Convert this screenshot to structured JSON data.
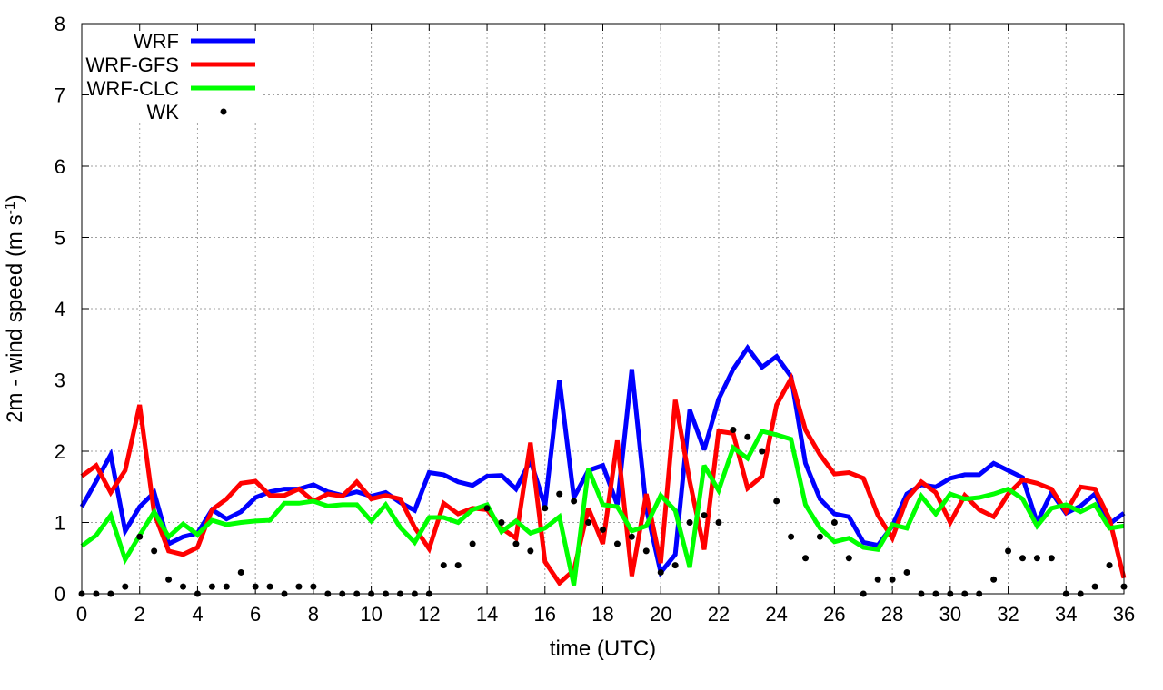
{
  "chart_data": {
    "type": "line",
    "xlabel": "time (UTC)",
    "ylabel": {
      "main": "2m - wind speed  (m s",
      "sup": "-1",
      "close": ")"
    },
    "xlim": [
      0,
      36
    ],
    "ylim": [
      0,
      8
    ],
    "xticks": [
      0,
      2,
      4,
      6,
      8,
      10,
      12,
      14,
      16,
      18,
      20,
      22,
      24,
      26,
      28,
      30,
      32,
      34,
      36
    ],
    "yticks": [
      0,
      1,
      2,
      3,
      4,
      5,
      6,
      7,
      8
    ],
    "grid": true,
    "legend_position": "top-left",
    "series": [
      {
        "name": "WRF",
        "color": "#0000ff",
        "style": "line",
        "x": [
          0,
          0.5,
          1,
          1.5,
          2,
          2.5,
          3,
          3.5,
          4,
          4.5,
          5,
          5.5,
          6,
          6.5,
          7,
          7.5,
          8,
          8.5,
          9,
          9.5,
          10,
          10.5,
          11,
          11.5,
          12,
          12.5,
          13,
          13.5,
          14,
          14.5,
          15,
          15.5,
          16,
          16.5,
          17,
          17.5,
          18,
          18.5,
          19,
          19.5,
          20,
          20.5,
          21,
          21.5,
          22,
          22.5,
          23,
          23.5,
          24,
          24.5,
          25,
          25.5,
          26,
          26.5,
          27,
          27.5,
          28,
          28.5,
          29,
          29.5,
          30,
          30.5,
          31,
          31.5,
          32,
          32.5,
          33,
          33.5,
          34,
          34.5,
          35,
          35.5,
          36
        ],
        "y": [
          1.22,
          1.58,
          1.95,
          0.88,
          1.22,
          1.42,
          0.7,
          0.8,
          0.85,
          1.18,
          1.05,
          1.15,
          1.35,
          1.43,
          1.47,
          1.47,
          1.53,
          1.43,
          1.38,
          1.43,
          1.37,
          1.42,
          1.28,
          1.17,
          1.7,
          1.67,
          1.57,
          1.52,
          1.65,
          1.66,
          1.47,
          1.87,
          1.23,
          3.0,
          1.35,
          1.73,
          1.8,
          1.25,
          3.15,
          1.2,
          0.3,
          0.55,
          2.58,
          2.02,
          2.73,
          3.15,
          3.45,
          3.18,
          3.33,
          3.05,
          1.83,
          1.33,
          1.12,
          1.08,
          0.72,
          0.68,
          0.95,
          1.4,
          1.53,
          1.5,
          1.62,
          1.67,
          1.67,
          1.83,
          1.73,
          1.63,
          1.0,
          1.42,
          1.13,
          1.23,
          1.4,
          0.98,
          1.13
        ]
      },
      {
        "name": "WRF-GFS",
        "color": "#ff0000",
        "style": "line",
        "x": [
          0,
          0.5,
          1,
          1.5,
          2,
          2.5,
          3,
          3.5,
          4,
          4.5,
          5,
          5.5,
          6,
          6.5,
          7,
          7.5,
          8,
          8.5,
          9,
          9.5,
          10,
          10.5,
          11,
          11.5,
          12,
          12.5,
          13,
          13.5,
          14,
          14.5,
          15,
          15.5,
          16,
          16.5,
          17,
          17.5,
          18,
          18.5,
          19,
          19.5,
          20,
          20.5,
          21,
          21.5,
          22,
          22.5,
          23,
          23.5,
          24,
          24.5,
          25,
          25.5,
          26,
          26.5,
          27,
          27.5,
          28,
          28.5,
          29,
          29.5,
          30,
          30.5,
          31,
          31.5,
          32,
          32.5,
          33,
          33.5,
          34,
          34.5,
          35,
          35.5,
          36
        ],
        "y": [
          1.65,
          1.8,
          1.42,
          1.73,
          2.65,
          1.13,
          0.6,
          0.55,
          0.65,
          1.18,
          1.33,
          1.55,
          1.58,
          1.38,
          1.38,
          1.47,
          1.3,
          1.4,
          1.37,
          1.57,
          1.33,
          1.38,
          1.33,
          0.93,
          0.63,
          1.27,
          1.12,
          1.2,
          1.18,
          0.92,
          0.78,
          2.12,
          0.45,
          0.15,
          0.33,
          1.2,
          0.7,
          2.15,
          0.25,
          1.4,
          0.43,
          2.72,
          1.58,
          0.62,
          2.28,
          2.25,
          1.48,
          1.65,
          2.65,
          3.02,
          2.3,
          1.95,
          1.68,
          1.7,
          1.62,
          1.1,
          0.78,
          1.33,
          1.57,
          1.42,
          1.0,
          1.38,
          1.18,
          1.08,
          1.4,
          1.6,
          1.55,
          1.47,
          1.15,
          1.5,
          1.47,
          1.05,
          0.22
        ]
      },
      {
        "name": "WRF-CLC",
        "color": "#00ff00",
        "style": "line",
        "x": [
          0,
          0.5,
          1,
          1.5,
          2,
          2.5,
          3,
          3.5,
          4,
          4.5,
          5,
          5.5,
          6,
          6.5,
          7,
          7.5,
          8,
          8.5,
          9,
          9.5,
          10,
          10.5,
          11,
          11.5,
          12,
          12.5,
          13,
          13.5,
          14,
          14.5,
          15,
          15.5,
          16,
          16.5,
          17,
          17.5,
          18,
          18.5,
          19,
          19.5,
          20,
          20.5,
          21,
          21.5,
          22,
          22.5,
          23,
          23.5,
          24,
          24.5,
          25,
          25.5,
          26,
          26.5,
          27,
          27.5,
          28,
          28.5,
          29,
          29.5,
          30,
          30.5,
          31,
          31.5,
          32,
          32.5,
          33,
          33.5,
          34,
          34.5,
          35,
          35.5,
          36
        ],
        "y": [
          0.67,
          0.82,
          1.1,
          0.48,
          0.82,
          1.15,
          0.8,
          0.98,
          0.83,
          1.03,
          0.97,
          1.0,
          1.02,
          1.03,
          1.27,
          1.27,
          1.3,
          1.23,
          1.25,
          1.25,
          1.02,
          1.25,
          0.93,
          0.72,
          1.07,
          1.07,
          1.0,
          1.18,
          1.25,
          0.87,
          1.02,
          0.85,
          0.92,
          1.08,
          0.12,
          1.75,
          1.25,
          1.22,
          0.88,
          0.95,
          1.38,
          1.17,
          0.37,
          1.8,
          1.45,
          2.05,
          1.9,
          2.28,
          2.23,
          2.17,
          1.25,
          0.92,
          0.73,
          0.78,
          0.65,
          0.62,
          0.97,
          0.92,
          1.37,
          1.12,
          1.4,
          1.33,
          1.35,
          1.4,
          1.47,
          1.33,
          0.95,
          1.2,
          1.25,
          1.15,
          1.25,
          0.92,
          0.95
        ]
      },
      {
        "name": "WK",
        "color": "#000000",
        "style": "points",
        "x": [
          0,
          0.5,
          1,
          1.5,
          2,
          2.5,
          3,
          3.5,
          4,
          4.5,
          5,
          5.5,
          6,
          6.5,
          7,
          7.5,
          8,
          8.5,
          9,
          9.5,
          10,
          10.5,
          11,
          11.5,
          12,
          12.5,
          13,
          13.5,
          14,
          14.5,
          15,
          15.5,
          16,
          16.5,
          17,
          17.5,
          18,
          18.5,
          19,
          19.5,
          20,
          20.5,
          21,
          21.5,
          22,
          22.5,
          23,
          23.5,
          24,
          24.5,
          25,
          25.5,
          26,
          26.5,
          27,
          27.5,
          28,
          28.5,
          29,
          29.5,
          30,
          30.5,
          31,
          31.5,
          32,
          32.5,
          33,
          33.5,
          34,
          34.5,
          35,
          35.5,
          36
        ],
        "y": [
          0,
          0,
          0,
          0.1,
          0.8,
          0.6,
          0.2,
          0.1,
          0,
          0.1,
          0.1,
          0.3,
          0.1,
          0.1,
          0,
          0.1,
          0.1,
          0,
          0,
          0,
          0,
          0,
          0,
          0,
          0,
          0.4,
          0.4,
          0.7,
          1.2,
          1.0,
          0.7,
          0.6,
          1.2,
          1.4,
          1.3,
          1.0,
          0.9,
          0.7,
          0.8,
          0.6,
          0.3,
          0.4,
          1.0,
          1.1,
          1.0,
          2.3,
          2.2,
          2.0,
          1.3,
          0.8,
          0.5,
          0.8,
          1.0,
          0.5,
          0,
          0.2,
          0.2,
          0.3,
          0,
          0,
          0,
          0,
          0,
          0.2,
          0.6,
          0.5,
          0.5,
          0.5,
          0,
          0,
          0.1,
          0.4,
          0.1
        ]
      }
    ]
  }
}
